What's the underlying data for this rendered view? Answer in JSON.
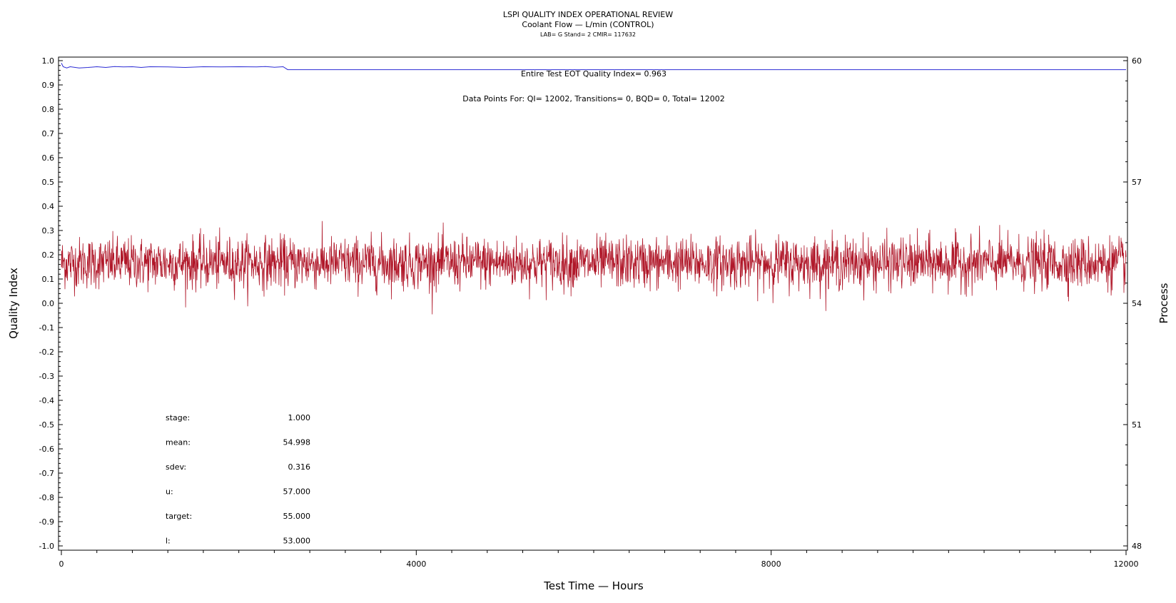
{
  "header": {
    "title": "LSPI QUALITY INDEX OPERATIONAL REVIEW",
    "subtitle": "Coolant Flow — L/min (CONTROL)",
    "subtitle2": "LAB= G Stand= 2 CMIR= 117632"
  },
  "colors": {
    "qi_line": "#2b2bd4",
    "process_line": "#b01729",
    "axis": "#000000"
  },
  "chart_data": {
    "type": "line",
    "xlabel": "Test Time — Hours",
    "ylabel": "Quality Index",
    "y2label": "Process",
    "xlim": [
      0,
      12000
    ],
    "ylim": [
      -1.0,
      1.0
    ],
    "y2lim": [
      48,
      60
    ],
    "x_ticks": [
      "0",
      "4000",
      "8000",
      "12000"
    ],
    "y_ticks": [
      "1.0",
      "0.9",
      "0.8",
      "0.7",
      "0.6",
      "0.5",
      "0.4",
      "0.3",
      "0.2",
      "0.1",
      "0.0",
      "-0.1",
      "-0.2",
      "-0.3",
      "-0.4",
      "-0.5",
      "-0.6",
      "-0.7",
      "-0.8",
      "-0.9",
      "-1.0"
    ],
    "y2_ticks": [
      "60",
      "57",
      "54",
      "51",
      "48"
    ],
    "annotations": {
      "eot": "Entire Test EOT Quality Index=   0.963",
      "points": "Data Points For: QI= 12002, Transitions=     0, BQD=     0, Total= 12002"
    },
    "stats": [
      {
        "label": "stage:",
        "value": "1.000"
      },
      {
        "label": "mean:",
        "value": "54.998"
      },
      {
        "label": "sdev:",
        "value": "0.316"
      },
      {
        "label": "u:",
        "value": "57.000"
      },
      {
        "label": "target:",
        "value": "55.000"
      },
      {
        "label": "l:",
        "value": "53.000"
      }
    ],
    "series": [
      {
        "name": "Quality Index",
        "axis": "left",
        "x": [
          0,
          20,
          60,
          100,
          200,
          300,
          400,
          500,
          600,
          700,
          800,
          900,
          1000,
          1200,
          1400,
          1600,
          1800,
          2000,
          2200,
          2300,
          2400,
          2500,
          2550,
          3000,
          6000,
          9000,
          12000
        ],
        "values": [
          0.99,
          0.975,
          0.97,
          0.975,
          0.97,
          0.972,
          0.975,
          0.972,
          0.976,
          0.974,
          0.975,
          0.972,
          0.975,
          0.974,
          0.972,
          0.975,
          0.974,
          0.975,
          0.974,
          0.976,
          0.973,
          0.975,
          0.963,
          0.963,
          0.963,
          0.963,
          0.963
        ]
      },
      {
        "name": "Process",
        "axis": "right",
        "mean": 54.998,
        "sdev": 0.316,
        "x_start": 0,
        "x_end": 12000,
        "n_points": 12002
      }
    ]
  }
}
